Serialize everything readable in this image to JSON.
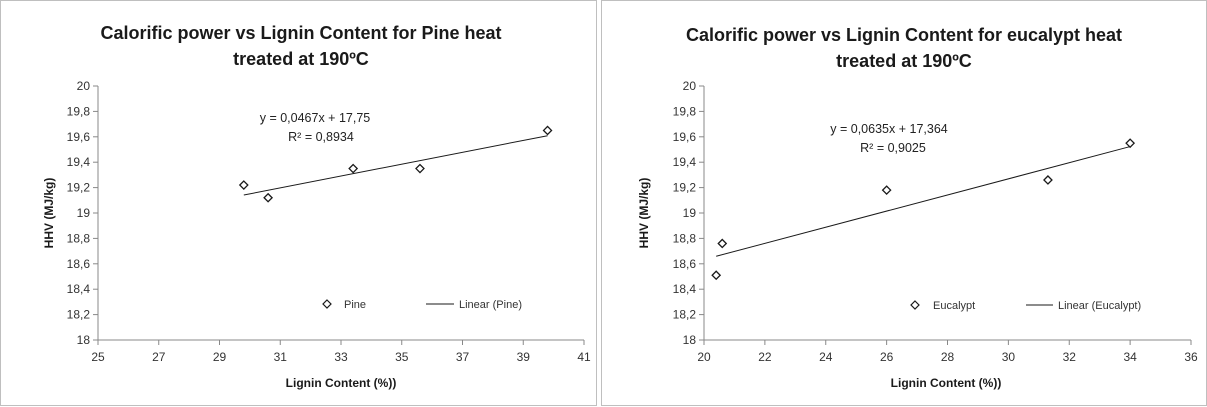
{
  "colors": {
    "marker": "#1a1a1a",
    "trendline": "#1a1a1a",
    "axis": "#888888",
    "border": "#bfbfbf"
  },
  "chart_data": [
    {
      "type": "scatter",
      "title": [
        "Calorific power vs Lignin Content for Pine  heat",
        "treated at 190ºC"
      ],
      "xlabel": "Lignin Content (%))",
      "ylabel": "HHV (MJ/kg)",
      "xlim": [
        25,
        41
      ],
      "ylim": [
        18,
        20
      ],
      "xticks": [
        "25",
        "27",
        "29",
        "31",
        "33",
        "35",
        "37",
        "39",
        "41"
      ],
      "yticks": [
        "18",
        "18,2",
        "18,4",
        "18,6",
        "18,8",
        "19",
        "19,2",
        "19,4",
        "19,6",
        "19,8",
        "20"
      ],
      "legend_position": "bottom-right",
      "series": [
        {
          "name": "Pine",
          "marker": "diamond-open",
          "x": [
            29.8,
            30.6,
            33.4,
            35.6,
            39.8
          ],
          "y": [
            19.22,
            19.12,
            19.35,
            19.35,
            19.65
          ]
        }
      ],
      "trendline": {
        "name": "Linear (Pine)",
        "slope": 0.0467,
        "intercept": 17.75,
        "x_range": [
          29.8,
          39.8
        ],
        "equation": "y = 0,0467x + 17,75",
        "r2": "R² = 0,8934"
      }
    },
    {
      "type": "scatter",
      "title": [
        "Calorific power vs Lignin Content for eucalypt  heat",
        "treated at 190ºC"
      ],
      "xlabel": "Lignin Content (%))",
      "ylabel": "HHV (MJ/kg)",
      "xlim": [
        20,
        36
      ],
      "ylim": [
        18,
        20
      ],
      "xticks": [
        "20",
        "22",
        "24",
        "26",
        "28",
        "30",
        "32",
        "34",
        "36"
      ],
      "yticks": [
        "18",
        "18,2",
        "18,4",
        "18,6",
        "18,8",
        "19",
        "19,2",
        "19,4",
        "19,6",
        "19,8",
        "20"
      ],
      "legend_position": "bottom-right",
      "series": [
        {
          "name": "Eucalypt",
          "marker": "diamond-open",
          "x": [
            20.4,
            20.6,
            26.0,
            31.3,
            34.0
          ],
          "y": [
            18.51,
            18.76,
            19.18,
            19.26,
            19.55
          ]
        }
      ],
      "trendline": {
        "name": "Linear (Eucalypt)",
        "slope": 0.0635,
        "intercept": 17.364,
        "x_range": [
          20.4,
          34.0
        ],
        "equation": "y = 0,0635x + 17,364",
        "r2": "R² = 0,9025"
      }
    }
  ]
}
